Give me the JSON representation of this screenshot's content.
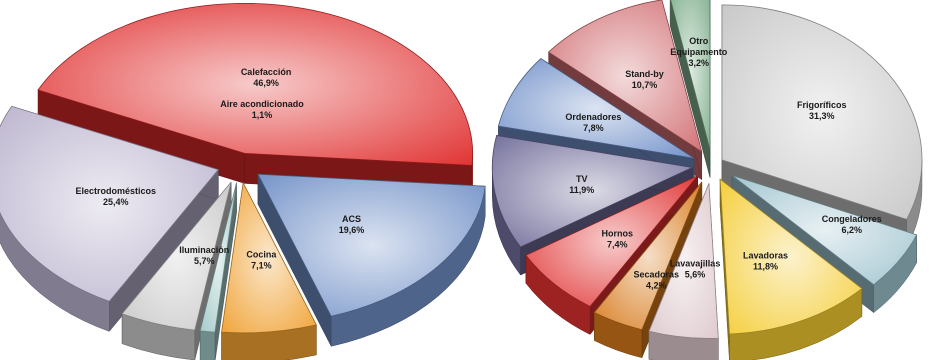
{
  "chart_data": [
    {
      "type": "pie",
      "style": "3D exploded pie",
      "colors": [
        "#e02a2a",
        "#6f8fc6",
        "#f0a030",
        "#9fc8c6",
        "#c8c8c8",
        "#b8b0cc"
      ],
      "slices": [
        {
          "label": "Calefacción",
          "value": 46.9,
          "value_label": "46,9%"
        },
        {
          "label": "ACS",
          "value": 19.6,
          "value_label": "19,6%"
        },
        {
          "label": "Cocina",
          "value": 7.1,
          "value_label": "7,1%"
        },
        {
          "label": "Aire acondicionado",
          "value": 1.1,
          "value_label": "1,1%"
        },
        {
          "label": "Iluminación",
          "value": 5.7,
          "value_label": "5,7%"
        },
        {
          "label": "Electrodomésticos",
          "value": 25.4,
          "value_label": "25,4%"
        }
      ]
    },
    {
      "type": "pie",
      "style": "3D exploded pie",
      "colors": [
        "#c6c6c6",
        "#9fc3cf",
        "#f4cc32",
        "#ddc8cc",
        "#d77a1c",
        "#e03030",
        "#6e6a98",
        "#6e8ec8",
        "#d06c70",
        "#7fae8c"
      ],
      "slices": [
        {
          "label": "Frigoríficos",
          "value": 31.3,
          "value_label": "31,3%"
        },
        {
          "label": "Congeladores",
          "value": 6.2,
          "value_label": "6,2%"
        },
        {
          "label": "Lavadoras",
          "value": 11.8,
          "value_label": "11,8%"
        },
        {
          "label": "Lavavajillas",
          "value": 5.6,
          "value_label": "5,6%"
        },
        {
          "label": "Secadoras",
          "value": 4.2,
          "value_label": "4,2%"
        },
        {
          "label": "Hornos",
          "value": 7.4,
          "value_label": "7,4%"
        },
        {
          "label": "TV",
          "value": 11.9,
          "value_label": "11,9%"
        },
        {
          "label": "Ordenadores",
          "value": 7.8,
          "value_label": "7,8%"
        },
        {
          "label": "Stand-by",
          "value": 10.7,
          "value_label": "10,7%"
        },
        {
          "label": "Equipamento",
          "value": 3.2,
          "value_label": "3,2%",
          "label_prefix": "Otro"
        }
      ]
    }
  ]
}
